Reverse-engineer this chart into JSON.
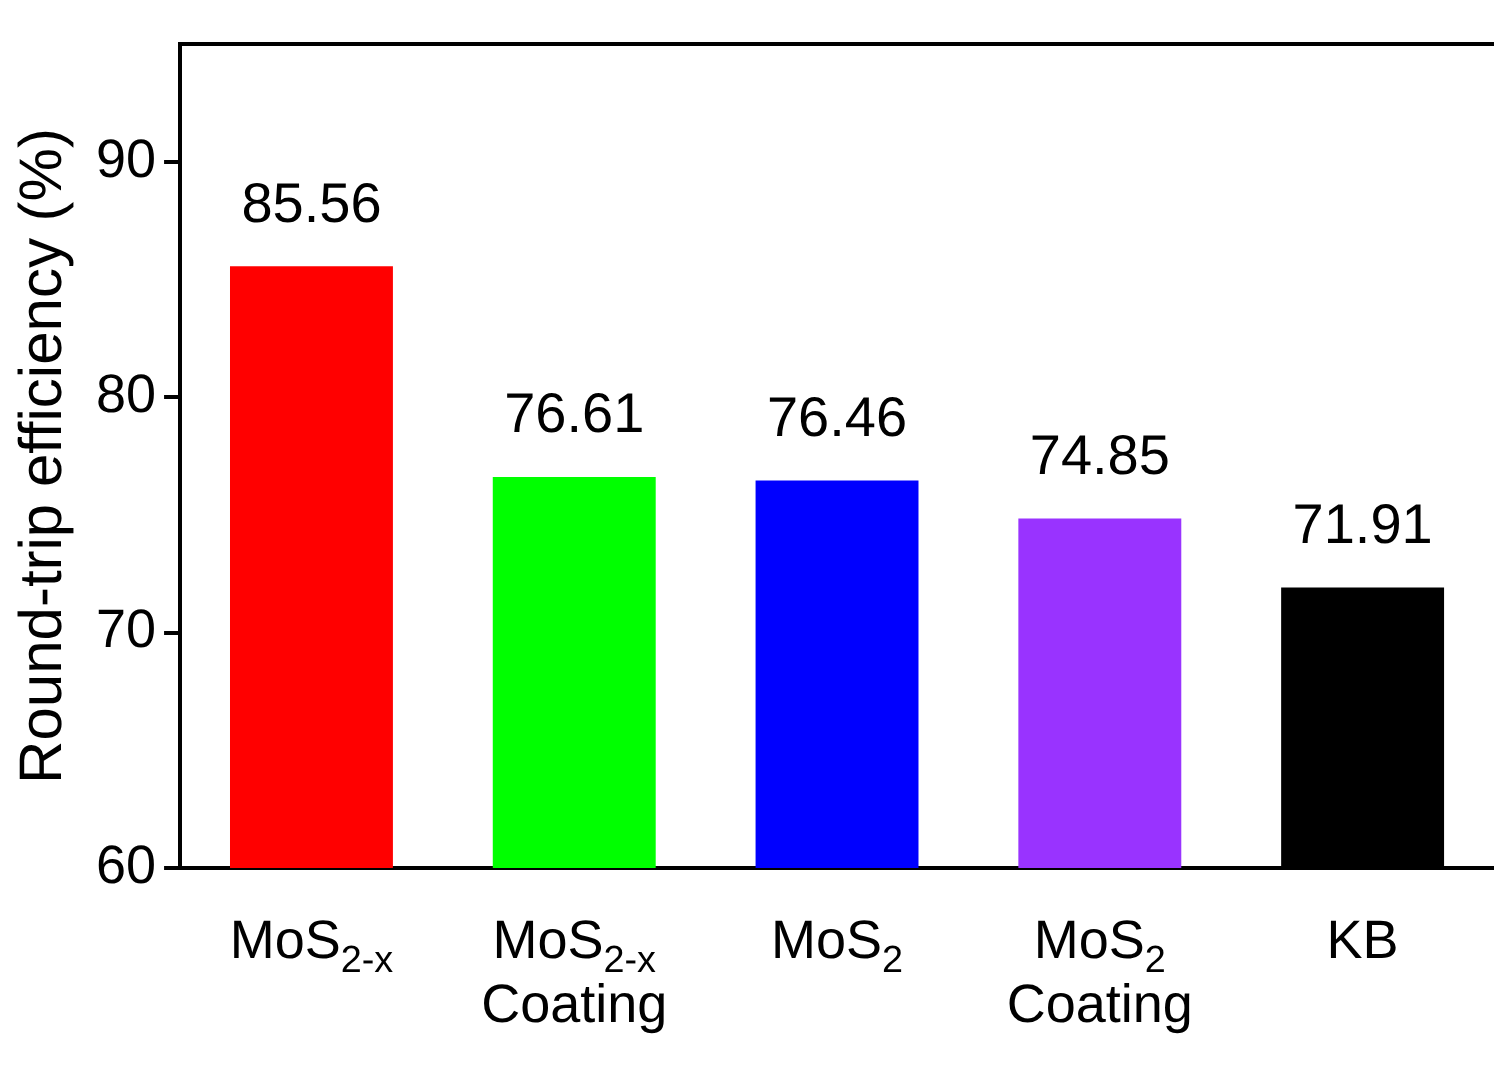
{
  "chart_data": {
    "type": "bar",
    "ylabel": "Round-trip efficiency (%)",
    "categories": [
      "MoS$_{2-x}$",
      "MoS$_{2-x}$ Coating",
      "MoS$_{2}$",
      "MoS$_{2}$ Coating",
      "KB"
    ],
    "values": [
      85.56,
      76.61,
      76.46,
      74.85,
      71.91
    ],
    "colors": [
      "#ff0000",
      "#00ff00",
      "#0000ff",
      "#9933ff",
      "#000000"
    ],
    "ylim": [
      60,
      95
    ],
    "yticks": [
      60,
      70,
      80,
      90
    ],
    "grid": false,
    "legend": false,
    "data_labels": true
  }
}
